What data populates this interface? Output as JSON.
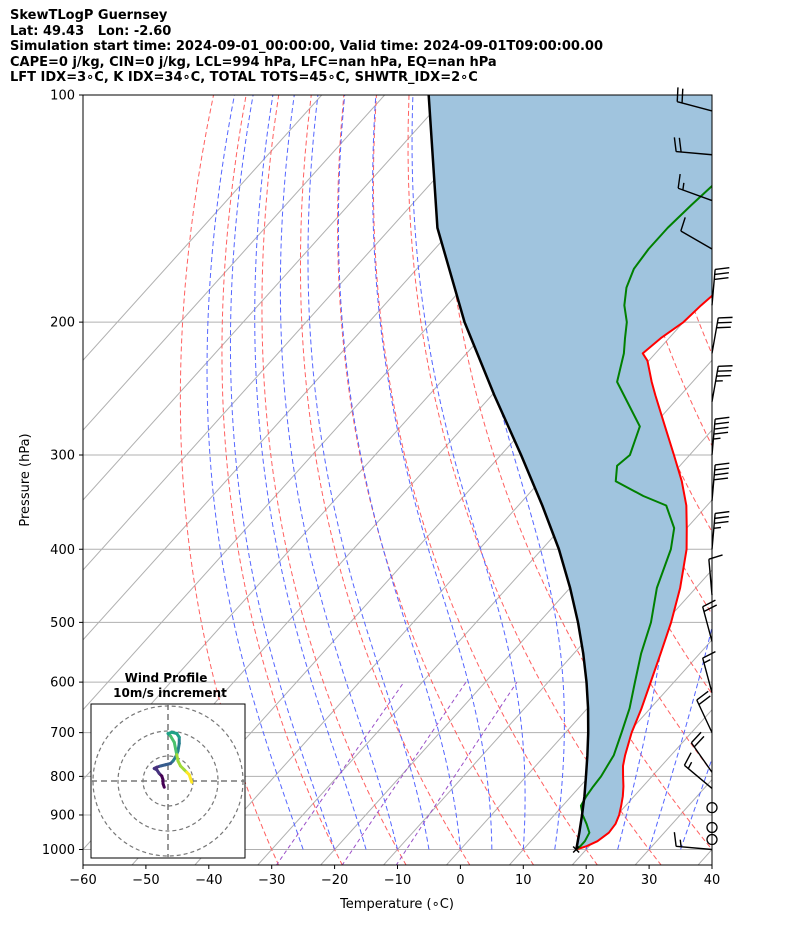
{
  "header": {
    "lines": [
      "SkewTLogP Guernsey",
      "Lat: 49.43   Lon: -2.60",
      "Simulation start time: 2024-09-01_00:00:00, Valid time: 2024-09-01T09:00:00.00",
      "CAPE=0 j/kg, CIN=0 j/kg, LCL=994 hPa, LFC=nan hPa, EQ=nan hPa",
      "LFT IDX=3∘C, K IDX=34∘C, TOTAL TOTS=45∘C, SHWTR_IDX=2∘C"
    ]
  },
  "chart_data": {
    "type": "skewt",
    "xlabel": "Temperature (∘C)",
    "ylabel": "Pressure (hPa)",
    "xlim": [
      -60,
      40
    ],
    "ylim": [
      1050,
      100
    ],
    "xticks": [
      -60,
      -50,
      -40,
      -30,
      -20,
      -10,
      0,
      10,
      20,
      30,
      40
    ],
    "xtick_labels": [
      "−60",
      "−50",
      "−40",
      "−30",
      "−20",
      "−10",
      "0",
      "10",
      "20",
      "30",
      "40"
    ],
    "yticks": [
      1000,
      900,
      800,
      700,
      600,
      500,
      400,
      300,
      200,
      100
    ],
    "ytick_labels": [
      "1000",
      "900",
      "800",
      "700",
      "600",
      "500",
      "400",
      "300",
      "200",
      "100"
    ],
    "grid": true,
    "colors": {
      "temperature": "#ff0000",
      "dewpoint": "#008000",
      "parcel": "#000000",
      "shade": "#a0c4de",
      "dry_adiabat": "#ff6060",
      "moist_adiabat": "#5566ff",
      "mixing_ratio": "#9a4fc8",
      "isotherm": "#b0b0b0"
    },
    "series": [
      {
        "key": "temperature",
        "pairs": [
          [
            1000,
            18.4
          ],
          [
            990,
            19.6
          ],
          [
            975,
            20.6
          ],
          [
            950,
            21.2
          ],
          [
            925,
            21.0
          ],
          [
            900,
            20.3
          ],
          [
            875,
            19.3
          ],
          [
            850,
            18.2
          ],
          [
            825,
            16.9
          ],
          [
            800,
            15.4
          ],
          [
            775,
            13.9
          ],
          [
            750,
            12.7
          ],
          [
            700,
            10.5
          ],
          [
            650,
            8.6
          ],
          [
            600,
            6.3
          ],
          [
            550,
            3.8
          ],
          [
            500,
            1.0
          ],
          [
            450,
            -2.5
          ],
          [
            400,
            -7.0
          ],
          [
            375,
            -10.0
          ],
          [
            350,
            -13.3
          ],
          [
            325,
            -17.5
          ],
          [
            300,
            -22.5
          ],
          [
            275,
            -28.0
          ],
          [
            250,
            -34.0
          ],
          [
            240,
            -36.5
          ],
          [
            225,
            -40.2
          ],
          [
            220,
            -42.0
          ],
          [
            210,
            -41.3
          ],
          [
            200,
            -40.0
          ],
          [
            190,
            -39.6
          ],
          [
            180,
            -38.9
          ],
          [
            170,
            -39.0
          ],
          [
            160,
            -39.5
          ],
          [
            150,
            -40.0
          ],
          [
            140,
            -41.0
          ],
          [
            130,
            -42.0
          ],
          [
            120,
            -43.5
          ],
          [
            110,
            -45.0
          ],
          [
            100,
            -47.0
          ]
        ]
      },
      {
        "key": "dewpoint",
        "pairs": [
          [
            1000,
            18.4
          ],
          [
            990,
            18.6
          ],
          [
            975,
            18.6
          ],
          [
            950,
            18.1
          ],
          [
            925,
            16.4
          ],
          [
            900,
            14.5
          ],
          [
            875,
            12.9
          ],
          [
            850,
            12.4
          ],
          [
            825,
            12.1
          ],
          [
            800,
            11.9
          ],
          [
            775,
            11.4
          ],
          [
            750,
            10.9
          ],
          [
            700,
            8.9
          ],
          [
            650,
            6.7
          ],
          [
            600,
            3.8
          ],
          [
            550,
            0.7
          ],
          [
            500,
            -2.2
          ],
          [
            450,
            -6.2
          ],
          [
            400,
            -9.5
          ],
          [
            375,
            -12.0
          ],
          [
            350,
            -16.5
          ],
          [
            340,
            -21.5
          ],
          [
            325,
            -28.0
          ],
          [
            310,
            -30.0
          ],
          [
            300,
            -29.5
          ],
          [
            275,
            -32.0
          ],
          [
            250,
            -39.0
          ],
          [
            240,
            -42.0
          ],
          [
            220,
            -45.0
          ],
          [
            210,
            -47.0
          ],
          [
            200,
            -49.0
          ],
          [
            190,
            -51.8
          ],
          [
            180,
            -54.0
          ],
          [
            170,
            -55.5
          ],
          [
            160,
            -56.0
          ],
          [
            150,
            -56.0
          ],
          [
            140,
            -55.5
          ],
          [
            120,
            -54.0
          ],
          [
            100,
            -55.0
          ]
        ]
      },
      {
        "key": "parcel",
        "pairs": [
          [
            1000,
            18.4
          ],
          [
            994,
            18.2
          ],
          [
            950,
            16.5
          ],
          [
            900,
            14.4
          ],
          [
            850,
            12.1
          ],
          [
            800,
            9.5
          ],
          [
            750,
            6.7
          ],
          [
            700,
            3.6
          ],
          [
            650,
            0.1
          ],
          [
            600,
            -3.9
          ],
          [
            550,
            -8.5
          ],
          [
            500,
            -13.8
          ],
          [
            450,
            -20.0
          ],
          [
            400,
            -27.3
          ],
          [
            350,
            -36.2
          ],
          [
            300,
            -46.8
          ],
          [
            250,
            -59.6
          ],
          [
            200,
            -74.8
          ],
          [
            150,
            -92.6
          ],
          [
            100,
            -113.0
          ]
        ]
      }
    ],
    "isotherms": [
      -130,
      -120,
      -110,
      -100,
      -90,
      -80,
      -70,
      -60,
      -50,
      -40,
      -30,
      -20,
      -10,
      0,
      10,
      20,
      30,
      40
    ],
    "dry_adiabats_theta_c": [
      -30,
      -20,
      -10,
      0,
      10,
      20,
      30,
      40,
      50,
      60,
      70,
      80,
      90,
      100,
      110,
      120
    ],
    "moist_adiabats_start_c": [
      -25,
      -20,
      -15,
      -10,
      -5,
      0,
      5,
      10,
      15,
      20,
      25,
      30,
      35
    ],
    "mixing_ratio_gkg": [
      0.4,
      1,
      2
    ],
    "wind_barbs": [
      {
        "p": 1000,
        "speed_kt": 16,
        "dir_deg": 275
      },
      {
        "p": 970,
        "speed_kt": 0,
        "dir_deg": 0
      },
      {
        "p": 935,
        "speed_kt": 0,
        "dir_deg": 0
      },
      {
        "p": 880,
        "speed_kt": 0,
        "dir_deg": 0
      },
      {
        "p": 830,
        "speed_kt": 15,
        "dir_deg": 310
      },
      {
        "p": 790,
        "speed_kt": 20,
        "dir_deg": 325
      },
      {
        "p": 700,
        "speed_kt": 20,
        "dir_deg": 335
      },
      {
        "p": 620,
        "speed_kt": 15,
        "dir_deg": 345
      },
      {
        "p": 530,
        "speed_kt": 20,
        "dir_deg": 345
      },
      {
        "p": 460,
        "speed_kt": 10,
        "dir_deg": 355
      },
      {
        "p": 400,
        "speed_kt": 35,
        "dir_deg": 5
      },
      {
        "p": 345,
        "speed_kt": 40,
        "dir_deg": 5
      },
      {
        "p": 300,
        "speed_kt": 45,
        "dir_deg": 5
      },
      {
        "p": 255,
        "speed_kt": 35,
        "dir_deg": 10
      },
      {
        "p": 220,
        "speed_kt": 30,
        "dir_deg": 10
      },
      {
        "p": 190,
        "speed_kt": 30,
        "dir_deg": 5
      },
      {
        "p": 160,
        "speed_kt": 10,
        "dir_deg": 300
      },
      {
        "p": 138,
        "speed_kt": 15,
        "dir_deg": 290
      },
      {
        "p": 120,
        "speed_kt": 20,
        "dir_deg": 275
      },
      {
        "p": 105,
        "speed_kt": 20,
        "dir_deg": 285
      }
    ],
    "hodograph": {
      "title": "Wind Profile",
      "subtitle": "10m/s increment",
      "ring_step_ms": 10,
      "rings": 3,
      "points_uv": [
        [
          -1.5,
          -2.5
        ],
        [
          -2.0,
          -1.0
        ],
        [
          -2.0,
          0.5
        ],
        [
          -2.5,
          2.0
        ],
        [
          -3.5,
          3.0
        ],
        [
          -4.5,
          4.5
        ],
        [
          -5.5,
          5.0
        ],
        [
          -4.5,
          5.5
        ],
        [
          -3.0,
          6.0
        ],
        [
          -1.0,
          6.5
        ],
        [
          1.0,
          7.0
        ],
        [
          2.0,
          8.0
        ],
        [
          3.0,
          9.5
        ],
        [
          4.0,
          12.0
        ],
        [
          4.5,
          15.0
        ],
        [
          4.5,
          17.5
        ],
        [
          3.5,
          19.0
        ],
        [
          1.5,
          19.5
        ],
        [
          0.0,
          19.0
        ],
        [
          1.0,
          18.0
        ],
        [
          2.5,
          15.5
        ],
        [
          3.0,
          13.0
        ],
        [
          3.5,
          10.5
        ],
        [
          4.0,
          8.0
        ],
        [
          5.0,
          6.0
        ],
        [
          6.5,
          4.5
        ],
        [
          7.5,
          3.5
        ],
        [
          8.5,
          2.5
        ],
        [
          9.0,
          1.0
        ],
        [
          9.5,
          -0.5
        ]
      ]
    }
  }
}
